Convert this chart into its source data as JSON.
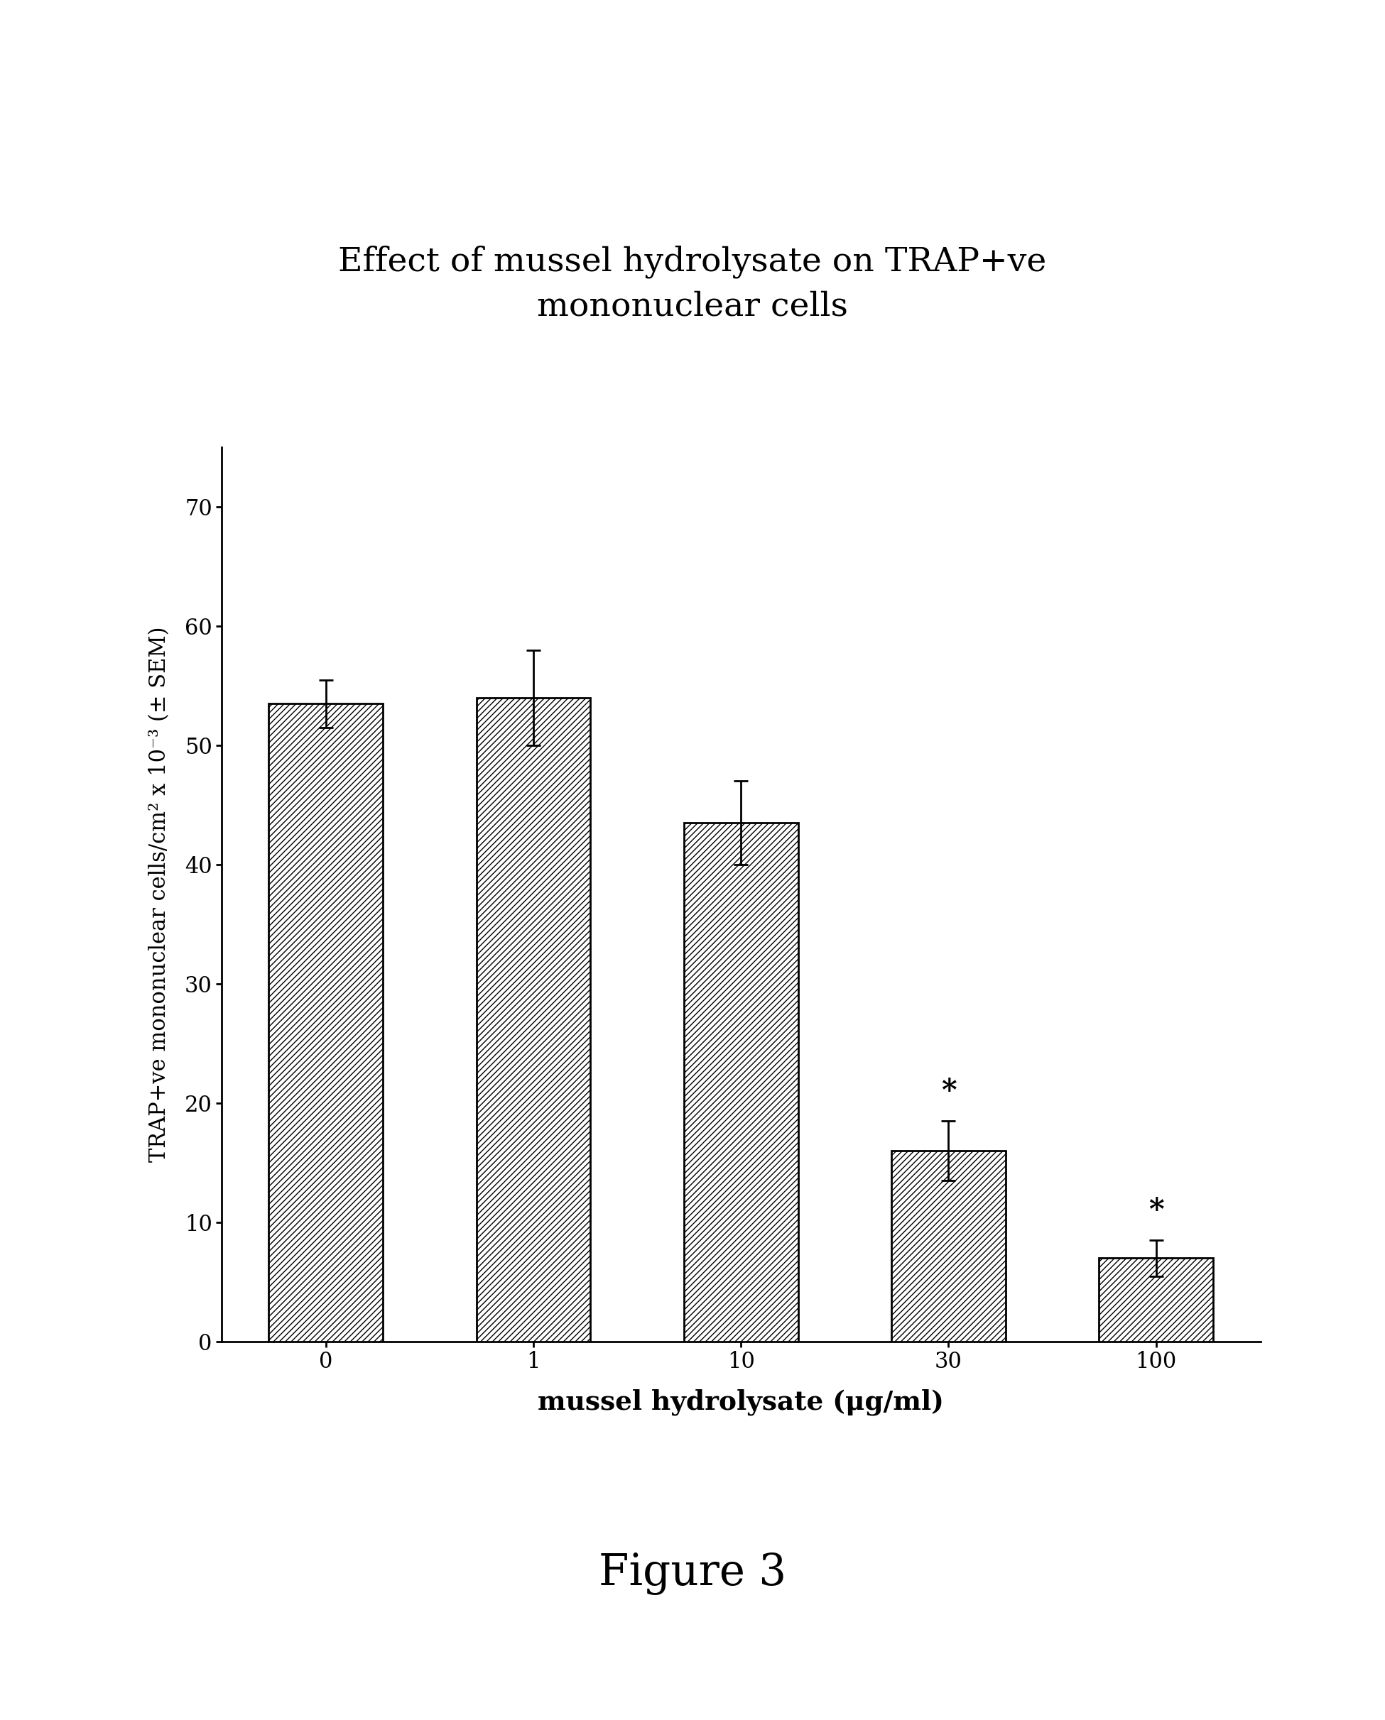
{
  "title_line1": "Effect of mussel hydrolysate on TRAP+ve",
  "title_line2": "mononuclear cells",
  "title_fontsize": 34,
  "xlabel": "mussel hydrolysate (μg/ml)",
  "ylabel": "TRAP+ve mononuclear cells/cm² x 10⁻³ (± SEM)",
  "xlabel_fontsize": 27,
  "ylabel_fontsize": 22,
  "categories": [
    "0",
    "1",
    "10",
    "30",
    "100"
  ],
  "values": [
    53.5,
    54.0,
    43.5,
    16.0,
    7.0
  ],
  "errors": [
    2.0,
    4.0,
    3.5,
    2.5,
    1.5
  ],
  "ylim": [
    0,
    75
  ],
  "yticks": [
    0,
    10,
    20,
    30,
    40,
    50,
    60,
    70
  ],
  "bar_color": "#ffffff",
  "bar_edgecolor": "#000000",
  "hatch": "////",
  "significant": [
    false,
    false,
    false,
    true,
    true
  ],
  "figure_caption": "Figure 3",
  "caption_fontsize": 44,
  "background_color": "#ffffff",
  "bar_width": 0.55,
  "tick_fontsize": 22,
  "spine_linewidth": 2.0
}
